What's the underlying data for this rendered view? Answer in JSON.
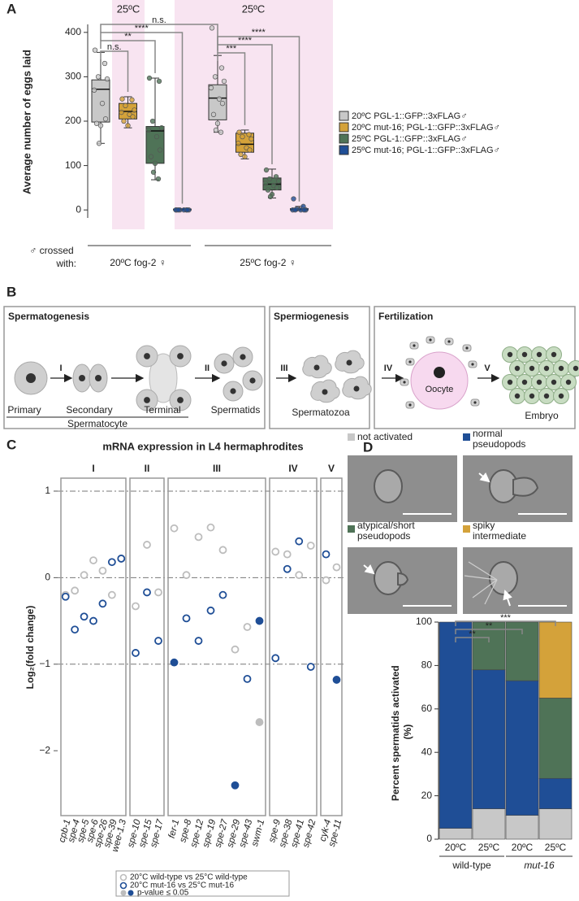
{
  "chart_data": [
    {
      "panel": "A",
      "type": "box",
      "ylabel": "Average number of eggs laid",
      "ylim": [
        -18,
        418
      ],
      "yticks": [
        0,
        100,
        200,
        300,
        400
      ],
      "shade_labels": [
        "25ºC",
        "25ºC"
      ],
      "groups": [
        "20ºC fog-2 ♀",
        "25ºC fog-2 ♀"
      ],
      "xlabel": "♂ crossed with:",
      "significance": [
        "n.s.",
        "**",
        "****",
        "n.s.",
        "***",
        "****",
        "****"
      ],
      "series": [
        {
          "name": "20ºC PGL-1::GFP::3xFLAG♂",
          "color": "#c8c8c8",
          "boxes": [
            {
              "min": 150,
              "q1": 198,
              "median": 272,
              "q3": 293,
              "max": 355,
              "points": [
                360,
                330,
                300,
                295,
                270,
                240,
                205,
                195,
                190,
                150
              ]
            },
            {
              "min": 175,
              "q1": 203,
              "median": 252,
              "q3": 282,
              "max": 348,
              "points": [
                410,
                320,
                300,
                290,
                275,
                250,
                240,
                215,
                195,
                180,
                175
              ]
            }
          ]
        },
        {
          "name": "20ºC mut-16; PGL-1::GFP::3xFLAG♂",
          "color": "#d4a23a",
          "boxes": [
            {
              "min": 185,
              "q1": 205,
              "median": 222,
              "q3": 240,
              "max": 255,
              "points": [
                250,
                248,
                235,
                225,
                220,
                215,
                210,
                200,
                190
              ]
            },
            {
              "min": 115,
              "q1": 130,
              "median": 148,
              "q3": 173,
              "max": 180,
              "points": [
                175,
                170,
                165,
                160,
                150,
                140,
                135,
                125,
                120
              ]
            }
          ]
        },
        {
          "name": "25ºC PGL-1::GFP::3xFLAG♂",
          "color": "#4f7357",
          "boxes": [
            {
              "min": 68,
              "q1": 105,
              "median": 178,
              "q3": 188,
              "max": 297,
              "points": [
                297,
                290,
                200,
                185,
                180,
                165,
                135,
                120,
                105,
                85,
                70
              ]
            },
            {
              "min": 27,
              "q1": 45,
              "median": 58,
              "q3": 72,
              "max": 92,
              "points": [
                90,
                75,
                70,
                65,
                60,
                55,
                50,
                45,
                35,
                30
              ]
            }
          ]
        },
        {
          "name": "25ºC mut-16; PGL-1::GFP::3xFLAG♂",
          "color": "#1f4e96",
          "boxes": [
            {
              "min": 0,
              "q1": 0,
              "median": 0,
              "q3": 2,
              "max": 3,
              "points": [
                0,
                0,
                0,
                0,
                0,
                0,
                0,
                0
              ]
            },
            {
              "min": 0,
              "q1": 0,
              "median": 0,
              "q3": 3,
              "max": 8,
              "points": [
                25,
                8,
                2,
                0,
                0,
                0,
                0,
                0
              ]
            }
          ]
        }
      ]
    },
    {
      "panel": "C",
      "type": "dot",
      "title": "mRNA expression in L4 hermaphrodites",
      "ylabel": "Log₂(fold change)",
      "ylim": [
        -2.75,
        1.15
      ],
      "yticks": [
        1,
        0,
        {
          "value": -1,
          "label": "−1"
        },
        {
          "value": -2,
          "label": "−2"
        }
      ],
      "hlines": [
        1,
        0,
        -1
      ],
      "group_labels": [
        "I",
        "II",
        "III",
        "IV",
        "V"
      ],
      "categories": [
        [
          "cpb-1",
          "spe-4",
          "spe-5",
          "spe-6",
          "spe-26",
          "spe-39",
          "wee-1.3"
        ],
        [
          "spe-10",
          "spe-15",
          "spe-17"
        ],
        [
          "fer-1",
          "spe-8",
          "spe-12",
          "spe-19",
          "spe-27",
          "spe-29",
          "spe-43",
          "swm-1"
        ],
        [
          "spe-9",
          "spe-38",
          "spe-41",
          "spe-42"
        ],
        [
          "cyk-4",
          "spe-11"
        ]
      ],
      "series": [
        {
          "name": "20°C wild-type vs 25°C wild-type",
          "color": "#bdbdbd",
          "values": [
            [
              -0.2,
              -0.15,
              0.03,
              0.2,
              0.08,
              -0.2,
              0.22
            ],
            [
              -0.33,
              0.38,
              -0.17
            ],
            [
              0.57,
              0.03,
              0.47,
              0.58,
              0.32,
              -0.83,
              -0.57,
              -1.67
            ],
            [
              0.3,
              0.27,
              0.03,
              0.37
            ],
            [
              -0.03,
              0.12
            ]
          ],
          "significant": [
            [
              false,
              false,
              false,
              false,
              false,
              false,
              false
            ],
            [
              false,
              false,
              false
            ],
            [
              false,
              false,
              false,
              false,
              false,
              false,
              false,
              true
            ],
            [
              false,
              false,
              false,
              false
            ],
            [
              false,
              false
            ]
          ]
        },
        {
          "name": "20°C mut-16 vs 25°C mut-16",
          "color": "#1f4e96",
          "values": [
            [
              -0.22,
              -0.6,
              -0.45,
              -0.5,
              -0.3,
              0.18,
              0.22
            ],
            [
              -0.87,
              -0.17,
              -0.73
            ],
            [
              -0.98,
              -0.47,
              -0.73,
              -0.38,
              -0.2,
              -2.4,
              -1.17,
              -0.5
            ],
            [
              -0.93,
              0.1,
              0.42,
              -1.03
            ],
            [
              0.27,
              -1.18
            ]
          ],
          "significant": [
            [
              false,
              false,
              false,
              false,
              false,
              false,
              false
            ],
            [
              false,
              false,
              false
            ],
            [
              true,
              false,
              false,
              false,
              false,
              true,
              false,
              true
            ],
            [
              false,
              false,
              false,
              false
            ],
            [
              false,
              true
            ]
          ]
        }
      ],
      "significance_label": "p-value ≤ 0.05"
    },
    {
      "panel": "D",
      "type": "stacked_bar",
      "ylabel": "Percent spermatids activated (%)",
      "ylim": [
        0,
        100
      ],
      "yticks": [
        0,
        20,
        40,
        60,
        80,
        100
      ],
      "categories": [
        "20ºC",
        "25ºC",
        "20ºC",
        "25ºC"
      ],
      "groups": [
        "wild-type",
        "mut-16"
      ],
      "significance": [
        "**",
        "**",
        "***"
      ],
      "series": [
        {
          "name": "not activated",
          "color": "#c8c8c8",
          "values": [
            5,
            14,
            11,
            14
          ]
        },
        {
          "name": "normal pseudopods",
          "color": "#1f4e96",
          "values": [
            95,
            64,
            62,
            14
          ]
        },
        {
          "name": "atypical/short pseudopods",
          "color": "#4f7357",
          "values": [
            0,
            22,
            27,
            37
          ]
        },
        {
          "name": "spiky intermediate",
          "color": "#d4a23a",
          "values": [
            0,
            0,
            0,
            35
          ]
        }
      ]
    }
  ],
  "diagram": {
    "panel": "B",
    "sections": [
      "Spermatogenesis",
      "Spermiogenesis",
      "Fertilization"
    ],
    "steps": [
      "I",
      "II",
      "III",
      "IV",
      "V"
    ],
    "cell_labels": [
      "Primary",
      "Secondary",
      "Terminal",
      "Spermatids",
      "Spermatozoa",
      "Oocyte",
      "Embryo"
    ],
    "group_label": "Spermatocyte"
  }
}
